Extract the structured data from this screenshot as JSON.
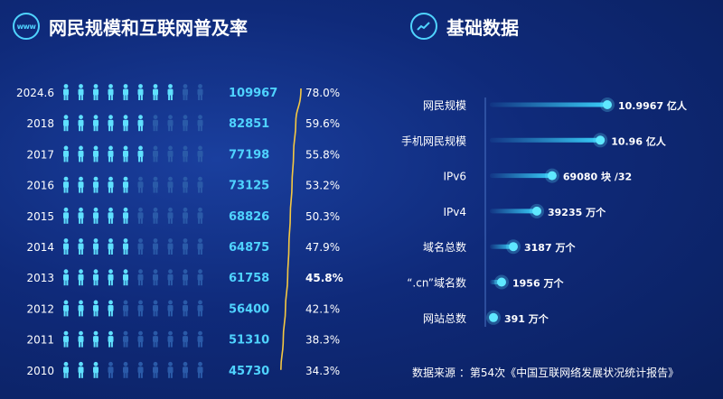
{
  "left_title": "网民规模和互联网普及率",
  "right_title": "基础数据",
  "icons": {
    "left": "globe-www-icon",
    "right": "trend-line-icon",
    "person": "person-icon"
  },
  "colors": {
    "accent": "#4fd3ff",
    "person_active": "#5fe0ff",
    "person_inactive": "#2a5aa8",
    "curve": "#f5c842",
    "bar": "#3ad6ff"
  },
  "source": "数据来源 ：第54次《中国互联网络发展状况统计报告》",
  "chart_data": [
    {
      "type": "bar",
      "title": "网民规模和互联网普及率",
      "categories": [
        "2024.6",
        "2018",
        "2017",
        "2016",
        "2015",
        "2014",
        "2013",
        "2012",
        "2011",
        "2010"
      ],
      "series": [
        {
          "values": [
            109967,
            82851,
            77198,
            73125,
            68826,
            64875,
            61758,
            56400,
            51310,
            45730
          ]
        },
        {
          "values": [
            78.0,
            59.6,
            55.8,
            53.2,
            50.3,
            47.9,
            45.8,
            42.1,
            38.3,
            34.3
          ]
        }
      ],
      "value_labels": [
        "109967",
        "82851",
        "77198",
        "73125",
        "68826",
        "64875",
        "61758",
        "56400",
        "51310",
        "45730"
      ],
      "percent_labels": [
        "78.0%",
        "59.6%",
        "55.8%",
        "53.2%",
        "50.3%",
        "47.9%",
        "45.8%",
        "42.1%",
        "38.3%",
        "34.3%"
      ],
      "icons_total": 10
    },
    {
      "type": "bar",
      "title": "基础数据",
      "categories": [
        "网民规模",
        "手机网民规模",
        "IPv6",
        "IPv4",
        "域名总数",
        "“.cn”域名数",
        "网站总数"
      ],
      "values": [
        10.9967,
        10.96,
        69080,
        39235,
        3187,
        1956,
        391
      ],
      "labels": [
        "10.9967 亿人",
        "10.96 亿人",
        "69080 块 /32",
        "39235 万个",
        "3187 万个",
        "1956 万个",
        "391 万个"
      ],
      "relative_length": [
        1.0,
        0.94,
        0.53,
        0.4,
        0.2,
        0.1,
        0.02
      ]
    }
  ]
}
